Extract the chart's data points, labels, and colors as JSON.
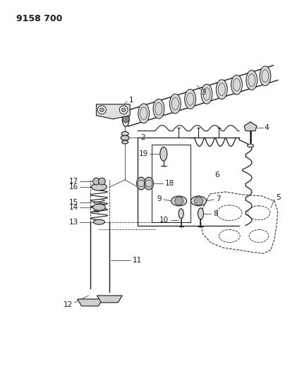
{
  "title": "9158 700",
  "bg": "#ffffff",
  "lc": "#1a1a1a",
  "fig_w": 4.11,
  "fig_h": 5.33,
  "dpi": 100
}
